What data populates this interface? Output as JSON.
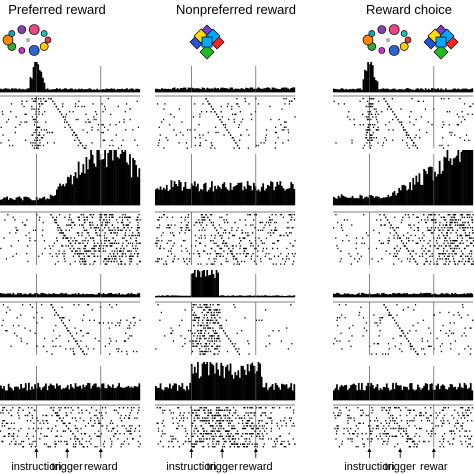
{
  "figure": {
    "columns": [
      {
        "title": "Preferred reward",
        "stimulus": "circles",
        "axis_labels": [
          "instruction",
          "trigger",
          "reward"
        ]
      },
      {
        "title": "Nonpreferred reward",
        "stimulus": "diamonds",
        "axis_labels": [
          "instruction",
          "trigger",
          "reward"
        ]
      },
      {
        "title": "Reward choice",
        "stimulus": "circles+diamonds",
        "axis_labels": [
          "instruction",
          "trigger",
          "rewar"
        ]
      }
    ],
    "colors": {
      "circles": [
        "#e04040",
        "#ffcc00",
        "#3366cc",
        "#cc33cc",
        "#33aa33",
        "#ff8800",
        "#00aacc",
        "#8844aa",
        "#ee4488",
        "#22bbbb"
      ],
      "diamonds": [
        "#7a3ccf",
        "#2255dd",
        "#ff2222",
        "#22bb22",
        "#ffdd00",
        "#00aaff"
      ],
      "bars": "#000000",
      "raster": "#000000"
    },
    "neurons": [
      {
        "profiles": [
          "instruction-burst",
          "flat-low",
          "instruction-burst"
        ]
      },
      {
        "profiles": [
          "ramp-to-reward",
          "flat-mid",
          "ramp-to-reward-strong"
        ]
      },
      {
        "profiles": [
          "flat-low",
          "instruction-sustained",
          "flat-low"
        ]
      },
      {
        "profiles": [
          "flat-mid",
          "sustained-high",
          "flat-mid"
        ]
      }
    ]
  }
}
